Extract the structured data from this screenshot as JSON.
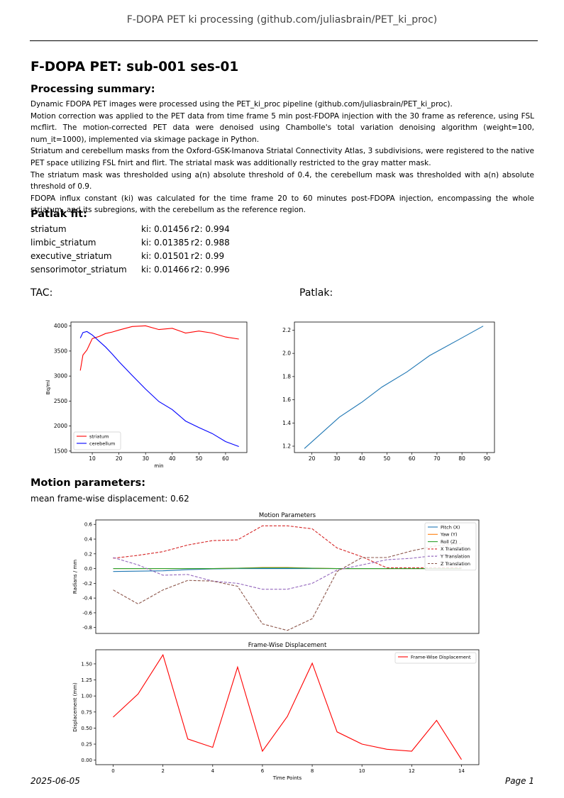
{
  "running_header": "F-DOPA PET ki processing (github.com/juliasbrain/PET_ki_proc)",
  "title": "F-DOPA PET: sub-001 ses-01",
  "summary_heading": "Processing summary:",
  "summary_paragraphs": [
    "Dynamic FDOPA PET images were processed using the PET_ki_proc pipeline (github.com/juliasbrain/PET_ki_proc).",
    "Motion correction was applied to the PET data from time frame 5 min post-FDOPA injection with the 30 frame as reference, using FSL mcflirt. The motion-corrected PET data were denoised using Chambolle's total variation denoising algorithm (weight=100, num_it=1000), implemented via skimage package in Python.",
    "Striatum and cerebellum masks from the Oxford-GSK-Imanova Striatal Connectivity Atlas, 3 subdivisions, were registered to the native PET space utilizing FSL fnirt and flirt. The striatal mask was additionally restricted to the gray matter mask.",
    "The striatum mask was thresholded using a(n) absolute threshold of 0.4, the cerebellum mask was thresholded with a(n) absolute threshold of 0.9.",
    "FDOPA influx constant (ki) was calculated for the time frame 20 to 60 minutes post-FDOPA injection, encompassing the whole striatum, and its subregions, with the cerebellum as the reference region."
  ],
  "patlak_heading": "Patlak fit:",
  "patlak_rows": [
    {
      "region": "striatum",
      "ki": "ki: 0.01456",
      "r2": "r2: 0.994"
    },
    {
      "region": "limbic_striatum",
      "ki": "ki: 0.01385",
      "r2": "r2: 0.988"
    },
    {
      "region": "executive_striatum",
      "ki": "ki: 0.01501",
      "r2": "r2: 0.99"
    },
    {
      "region": "sensorimotor_striatum",
      "ki": "ki: 0.01466",
      "r2": "r2: 0.996"
    }
  ],
  "tac_label": "TAC:",
  "patlak_label": "Patlak:",
  "motion_heading": "Motion parameters:",
  "fd_text": "mean frame-wise displacement: 0.62",
  "footer_date": "2025-06-05",
  "footer_page": "Page 1",
  "chart_data": [
    {
      "id": "tac",
      "type": "line",
      "title": "",
      "xlabel": "min",
      "ylabel": "Bq/ml",
      "xlim": [
        2,
        68
      ],
      "ylim": [
        1470,
        4080
      ],
      "xticks": [
        10,
        20,
        30,
        40,
        50,
        60
      ],
      "yticks": [
        1500,
        2000,
        2500,
        3000,
        3500,
        4000
      ],
      "legend": "bottom-left",
      "series": [
        {
          "name": "striatum",
          "color": "#ff0000",
          "x": [
            5.5,
            6.5,
            8,
            10,
            12.5,
            15,
            17.5,
            20,
            25,
            30,
            35,
            40,
            45,
            50,
            55,
            60,
            65
          ],
          "y": [
            3110,
            3420,
            3520,
            3750,
            3790,
            3850,
            3880,
            3920,
            3990,
            4005,
            3930,
            3955,
            3860,
            3900,
            3860,
            3780,
            3740
          ]
        },
        {
          "name": "cerebellum",
          "color": "#0000ff",
          "x": [
            5.5,
            6.5,
            8,
            10,
            12.5,
            15,
            17.5,
            20,
            25,
            30,
            35,
            40,
            45,
            50,
            55,
            60,
            65
          ],
          "y": [
            3760,
            3870,
            3890,
            3820,
            3700,
            3580,
            3440,
            3290,
            3010,
            2740,
            2490,
            2330,
            2100,
            1970,
            1850,
            1690,
            1590
          ]
        }
      ]
    },
    {
      "id": "patlak",
      "type": "line",
      "title": "",
      "xlabel": "",
      "ylabel": "",
      "xlim": [
        13,
        93
      ],
      "ylim": [
        1.145,
        2.27
      ],
      "xticks": [
        20,
        30,
        40,
        50,
        60,
        70,
        80,
        90
      ],
      "yticks": [
        1.2,
        1.4,
        1.6,
        1.8,
        2.0,
        2.2
      ],
      "series": [
        {
          "name": "",
          "color": "#1f77b4",
          "x": [
            17,
            31,
            40,
            48,
            58,
            67,
            78,
            88.5
          ],
          "y": [
            1.18,
            1.45,
            1.58,
            1.71,
            1.84,
            1.98,
            2.11,
            2.235
          ]
        }
      ]
    },
    {
      "id": "motion",
      "type": "line",
      "title": "Motion Parameters",
      "xlabel": "",
      "ylabel": "Radians / mm",
      "xlim": [
        -0.7,
        14.7
      ],
      "ylim": [
        -0.88,
        0.66
      ],
      "xticks": [],
      "yticks": [
        -0.8,
        -0.6,
        -0.4,
        -0.2,
        0.0,
        0.2,
        0.4,
        0.6
      ],
      "legend": "top-right",
      "x": [
        0,
        1,
        2,
        3,
        4,
        5,
        6,
        7,
        8,
        9,
        10,
        11,
        12,
        13,
        14
      ],
      "series": [
        {
          "name": "Pitch (X)",
          "color": "#1f77b4",
          "dash": false,
          "values": [
            -0.04,
            -0.035,
            -0.03,
            -0.015,
            -0.005,
            0.0,
            0.0,
            0.0,
            0.0,
            0.0,
            0.0,
            0.0,
            0.0,
            0.0,
            0.0
          ]
        },
        {
          "name": "Yaw (Y)",
          "color": "#ff7f0e",
          "dash": false,
          "values": [
            0.0,
            0.0,
            0.0,
            0.0,
            0.0,
            0.005,
            0.015,
            0.015,
            0.005,
            0.0,
            0.0,
            0.0,
            0.0,
            0.0,
            0.0
          ]
        },
        {
          "name": "Roll (Z)",
          "color": "#2ca02c",
          "dash": false,
          "values": [
            0.0,
            0.0,
            0.0,
            0.0,
            0.0,
            0.005,
            0.01,
            0.01,
            0.005,
            0.0,
            0.0,
            0.0,
            0.0,
            0.0,
            0.0
          ]
        },
        {
          "name": "X Translation",
          "color": "#d62728",
          "dash": true,
          "values": [
            0.14,
            0.18,
            0.23,
            0.32,
            0.38,
            0.39,
            0.58,
            0.58,
            0.54,
            0.28,
            0.16,
            0.01,
            0.01,
            0.01,
            0.01
          ]
        },
        {
          "name": "Y Translation",
          "color": "#9467bd",
          "dash": true,
          "values": [
            0.15,
            0.05,
            -0.09,
            -0.08,
            -0.17,
            -0.2,
            -0.28,
            -0.28,
            -0.2,
            -0.02,
            0.05,
            0.12,
            0.14,
            0.18,
            0.2
          ]
        },
        {
          "name": "Z Translation",
          "color": "#8c564b",
          "dash": true,
          "values": [
            -0.29,
            -0.48,
            -0.29,
            -0.16,
            -0.17,
            -0.24,
            -0.75,
            -0.84,
            -0.68,
            -0.04,
            0.15,
            0.15,
            0.24,
            0.31,
            0.34
          ]
        }
      ]
    },
    {
      "id": "fd",
      "type": "line",
      "title": "Frame-Wise Displacement",
      "xlabel": "Time Points",
      "ylabel": "Displacement (mm)",
      "xlim": [
        -0.7,
        14.7
      ],
      "ylim": [
        -0.07,
        1.72
      ],
      "xticks": [
        0,
        2,
        4,
        6,
        8,
        10,
        12,
        14
      ],
      "yticks": [
        0.0,
        0.25,
        0.5,
        0.75,
        1.0,
        1.25,
        1.5
      ],
      "ytick_labels": [
        "0.00",
        "0.25",
        "0.50",
        "0.75",
        "1.00",
        "1.25",
        "1.50"
      ],
      "legend": "top-right",
      "x": [
        0,
        1,
        2,
        3,
        4,
        5,
        6,
        7,
        8,
        9,
        10,
        11,
        12,
        13,
        14
      ],
      "series": [
        {
          "name": "Frame-Wise Displacement",
          "color": "#ff0000",
          "dash": false,
          "values": [
            0.67,
            1.03,
            1.64,
            0.33,
            0.2,
            1.45,
            0.14,
            0.68,
            1.51,
            0.44,
            0.25,
            0.17,
            0.14,
            0.62,
            0.01
          ]
        }
      ]
    }
  ]
}
